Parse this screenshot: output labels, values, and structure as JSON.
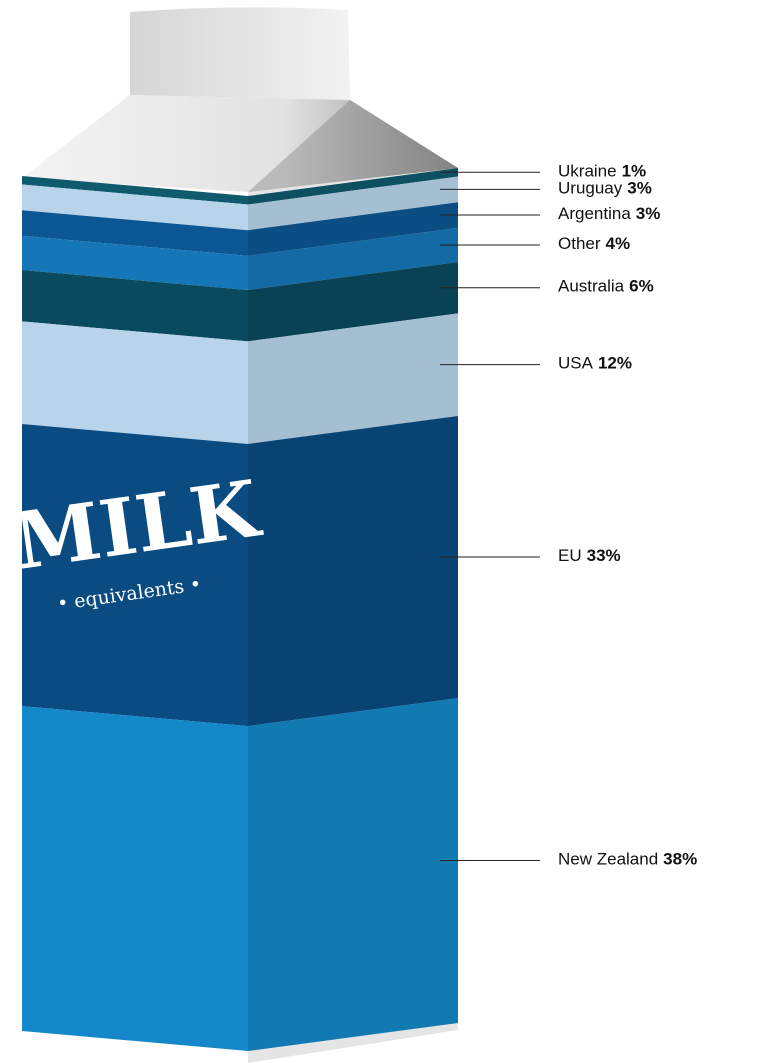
{
  "chart_data": {
    "type": "carton",
    "brand": "MILK",
    "tagline": "• equivalents •",
    "categories": [
      "Ukraine",
      "Uruguay",
      "Argentina",
      "Other",
      "Australia",
      "USA",
      "EU",
      "New Zealand"
    ],
    "values": [
      1,
      3,
      3,
      4,
      6,
      12,
      33,
      38
    ],
    "value_labels": [
      "1%",
      "3%",
      "3%",
      "4%",
      "6%",
      "12%",
      "33%",
      "38%"
    ],
    "colors": [
      "#0f5a6c",
      "#b7d4ea",
      "#0c5793",
      "#1677b8",
      "#0a4a5e",
      "#b7d4ea",
      "#0a4b82",
      "#1488c8"
    ]
  }
}
